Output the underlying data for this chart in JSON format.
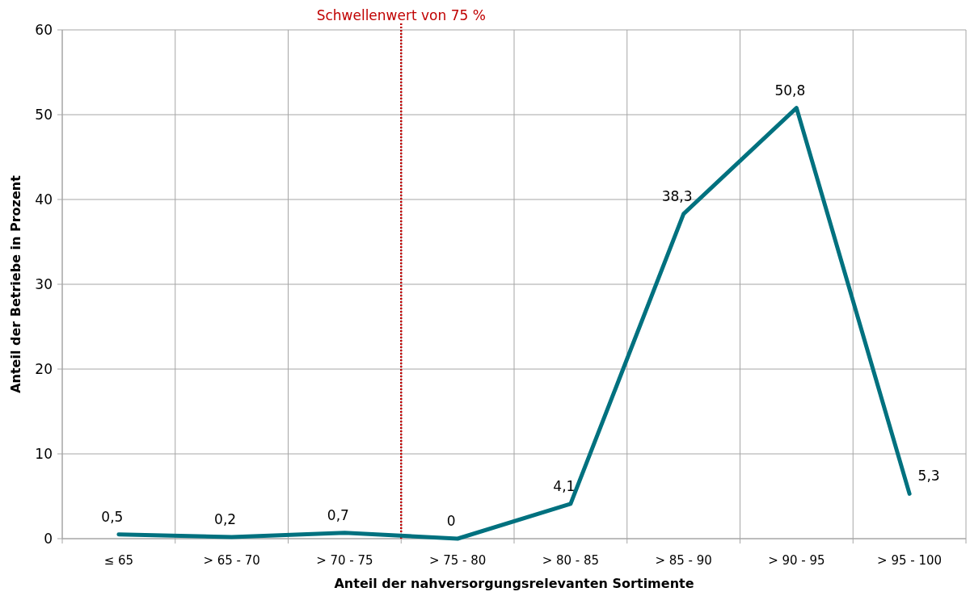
{
  "chart_data": {
    "type": "line",
    "xlabel": "Anteil der nahversorgungsrelevanten Sortimente",
    "ylabel": "Anteil der Betriebe in Prozent",
    "categories": [
      "≤ 65",
      "> 65  -  70",
      "> 70  -  75",
      "> 75  -  80",
      "> 80  -  85",
      "> 85  -  90",
      "> 90  -  95",
      "> 95  -  100"
    ],
    "series": [
      {
        "color": "#00717f",
        "values": [
          0.5,
          0.2,
          0.7,
          0,
          4.1,
          38.3,
          50.8,
          5.3
        ],
        "value_labels": [
          "0,5",
          "0,2",
          "0,7",
          "0",
          "4,1",
          "38,3",
          "50,8",
          "5,3"
        ]
      }
    ],
    "ylim": [
      0,
      60
    ],
    "yticks": [
      0,
      10,
      20,
      30,
      40,
      50,
      60
    ],
    "grid": true,
    "marker": "none",
    "line_style": "solid",
    "ref_lines": [
      {
        "axis": "x",
        "value": "> 75  -  80",
        "label": "Schwellenwert von 75 %",
        "color": "#c00000",
        "line_style": "dotted"
      }
    ]
  }
}
